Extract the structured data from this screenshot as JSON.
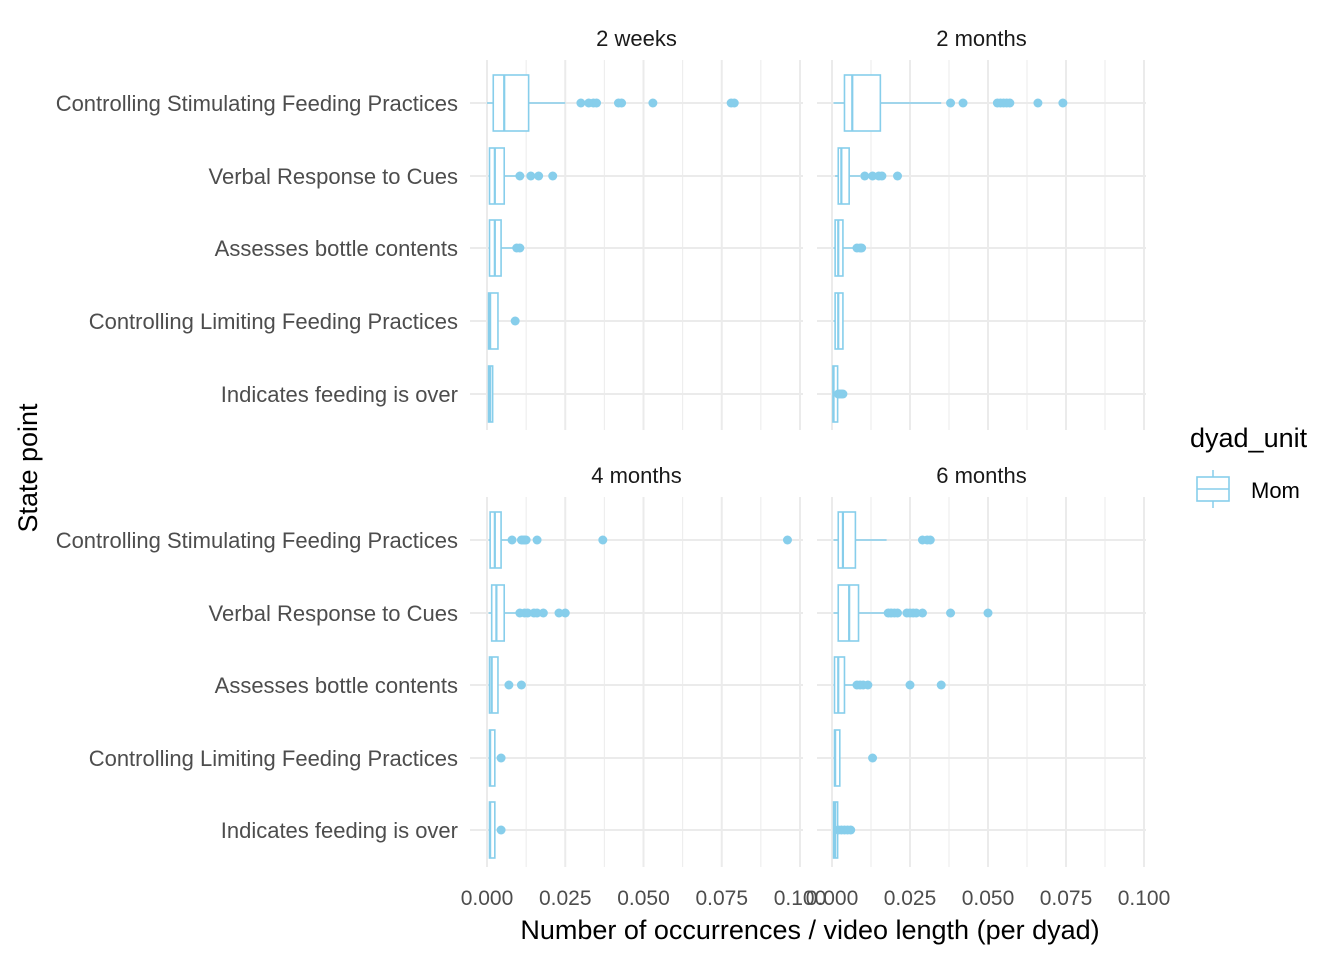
{
  "chart_data": {
    "type": "boxplot",
    "xlabel": "Number of occurrences / video length (per dyad)",
    "ylabel": "State point",
    "xlim": [
      0,
      0.1
    ],
    "xticks": [
      0.0,
      0.025,
      0.05,
      0.075,
      0.1
    ],
    "xtick_labels": [
      "0.000",
      "0.025",
      "0.050",
      "0.075",
      "0.100"
    ],
    "categories": [
      "Controlling Stimulating Feeding Practices",
      "Verbal Response to Cues",
      "Assesses bottle contents",
      "Controlling Limiting Feeding Practices",
      "Indicates feeding is over"
    ],
    "legend": {
      "title": "dyad_unit",
      "entries": [
        {
          "name": "Mom",
          "color": "#87ceeb"
        }
      ],
      "position": "right"
    },
    "color": "#87ceeb",
    "grid": true,
    "panels": [
      {
        "title": "2 weeks",
        "boxes": [
          {
            "category": "Controlling Stimulating Feeding Practices",
            "whisker_low": 0.0,
            "q1": 0.002,
            "median": 0.0055,
            "q3": 0.0065,
            "q3b": 0.0065,
            "q3_outer": 0.0133,
            "whisker_high": 0.025,
            "outliers": [
              0.03,
              0.0325,
              0.034,
              0.035,
              0.042,
              0.043,
              0.053,
              0.078,
              0.079
            ]
          },
          {
            "category": "Verbal Response to Cues",
            "whisker_low": 0.0005,
            "q1": 0.0008,
            "median": 0.0025,
            "q3": 0.003,
            "q3_outer": 0.0055,
            "whisker_high": 0.01,
            "outliers": [
              0.0105,
              0.014,
              0.0165,
              0.021
            ]
          },
          {
            "category": "Assesses bottle contents",
            "whisker_low": 0.0005,
            "q1": 0.0008,
            "median": 0.0025,
            "q3": 0.003,
            "q3_outer": 0.0045,
            "whisker_high": 0.009,
            "outliers": [
              0.0095,
              0.0105
            ]
          },
          {
            "category": "Controlling Limiting Feeding Practices",
            "whisker_low": 0.0005,
            "q1": 0.0005,
            "median": 0.001,
            "q3": 0.0015,
            "q3_outer": 0.0035,
            "whisker_high": 0.0035,
            "outliers": [
              0.009
            ]
          },
          {
            "category": "Indicates feeding is over",
            "whisker_low": 0.0003,
            "q1": 0.0005,
            "median": 0.001,
            "q3": 0.0015,
            "q3_outer": 0.0018,
            "whisker_high": 0.0018,
            "outliers": []
          }
        ]
      },
      {
        "title": "2 months",
        "boxes": [
          {
            "category": "Controlling Stimulating Feeding Practices",
            "whisker_low": 0.0005,
            "q1": 0.004,
            "median": 0.0065,
            "q3": 0.0075,
            "q3_outer": 0.0155,
            "whisker_high": 0.035,
            "outliers": [
              0.038,
              0.042,
              0.053,
              0.054,
              0.055,
              0.056,
              0.057,
              0.066,
              0.074
            ]
          },
          {
            "category": "Verbal Response to Cues",
            "whisker_low": 0.001,
            "q1": 0.002,
            "median": 0.003,
            "q3": 0.0035,
            "q3_outer": 0.0055,
            "whisker_high": 0.009,
            "outliers": [
              0.0105,
              0.013,
              0.015,
              0.016,
              0.021
            ]
          },
          {
            "category": "Assesses bottle contents",
            "whisker_low": 0.0005,
            "q1": 0.001,
            "median": 0.002,
            "q3": 0.0025,
            "q3_outer": 0.0035,
            "whisker_high": 0.0075,
            "outliers": [
              0.008,
              0.009,
              0.0095
            ]
          },
          {
            "category": "Controlling Limiting Feeding Practices",
            "whisker_low": 0.0005,
            "q1": 0.001,
            "median": 0.002,
            "q3": 0.0025,
            "q3_outer": 0.0035,
            "whisker_high": 0.0035,
            "outliers": []
          },
          {
            "category": "Indicates feeding is over",
            "whisker_low": 0.0002,
            "q1": 0.0003,
            "median": 0.0005,
            "q3": 0.0008,
            "q3_outer": 0.0018,
            "whisker_high": 0.0018,
            "outliers": [
              0.002,
              0.0025,
              0.003,
              0.0035
            ]
          }
        ]
      },
      {
        "title": "4 months",
        "boxes": [
          {
            "category": "Controlling Stimulating Feeding Practices",
            "whisker_low": 0.0005,
            "q1": 0.001,
            "median": 0.0025,
            "q3": 0.003,
            "q3_outer": 0.0045,
            "whisker_high": 0.0075,
            "outliers": [
              0.008,
              0.011,
              0.0115,
              0.012,
              0.0125,
              0.016,
              0.037,
              0.096
            ]
          },
          {
            "category": "Verbal Response to Cues",
            "whisker_low": 0.0005,
            "q1": 0.0015,
            "median": 0.003,
            "q3": 0.004,
            "q3_outer": 0.0055,
            "whisker_high": 0.01,
            "outliers": [
              0.0105,
              0.012,
              0.013,
              0.015,
              0.016,
              0.018,
              0.023,
              0.025
            ]
          },
          {
            "category": "Assesses bottle contents",
            "whisker_low": 0.0005,
            "q1": 0.0008,
            "median": 0.0015,
            "q3": 0.002,
            "q3_outer": 0.0035,
            "whisker_high": 0.0035,
            "outliers": [
              0.007,
              0.011
            ]
          },
          {
            "category": "Controlling Limiting Feeding Practices",
            "whisker_low": 0.0005,
            "q1": 0.0008,
            "median": 0.001,
            "q3": 0.0015,
            "q3_outer": 0.0025,
            "whisker_high": 0.0025,
            "outliers": [
              0.0045
            ]
          },
          {
            "category": "Indicates feeding is over",
            "whisker_low": 0.0005,
            "q1": 0.0008,
            "median": 0.001,
            "q3": 0.0015,
            "q3_outer": 0.0025,
            "whisker_high": 0.0025,
            "outliers": [
              0.0045
            ]
          }
        ]
      },
      {
        "title": "6 months",
        "boxes": [
          {
            "category": "Controlling Stimulating Feeding Practices",
            "whisker_low": 0.0005,
            "q1": 0.002,
            "median": 0.0035,
            "q3": 0.004,
            "q3_outer": 0.0075,
            "whisker_high": 0.0175,
            "outliers": [
              0.029,
              0.0305,
              0.0315
            ]
          },
          {
            "category": "Verbal Response to Cues",
            "whisker_low": 0.0005,
            "q1": 0.002,
            "median": 0.0055,
            "q3": 0.006,
            "q3_outer": 0.0085,
            "whisker_high": 0.017,
            "outliers": [
              0.018,
              0.019,
              0.02,
              0.021,
              0.024,
              0.025,
              0.026,
              0.027,
              0.029,
              0.038,
              0.05
            ]
          },
          {
            "category": "Assesses bottle contents",
            "whisker_low": 0.0005,
            "q1": 0.0008,
            "median": 0.002,
            "q3": 0.0025,
            "q3_outer": 0.004,
            "whisker_high": 0.007,
            "outliers": [
              0.008,
              0.009,
              0.01,
              0.0115,
              0.025,
              0.035
            ]
          },
          {
            "category": "Controlling Limiting Feeding Practices",
            "whisker_low": 0.0005,
            "q1": 0.0008,
            "median": 0.001,
            "q3": 0.0015,
            "q3_outer": 0.0025,
            "whisker_high": 0.0025,
            "outliers": [
              0.013
            ]
          },
          {
            "category": "Indicates feeding is over",
            "whisker_low": 0.0003,
            "q1": 0.0005,
            "median": 0.001,
            "q3": 0.0015,
            "q3_outer": 0.0018,
            "whisker_high": 0.0018,
            "outliers": [
              0.002,
              0.003,
              0.004,
              0.005,
              0.006
            ]
          }
        ]
      }
    ]
  }
}
